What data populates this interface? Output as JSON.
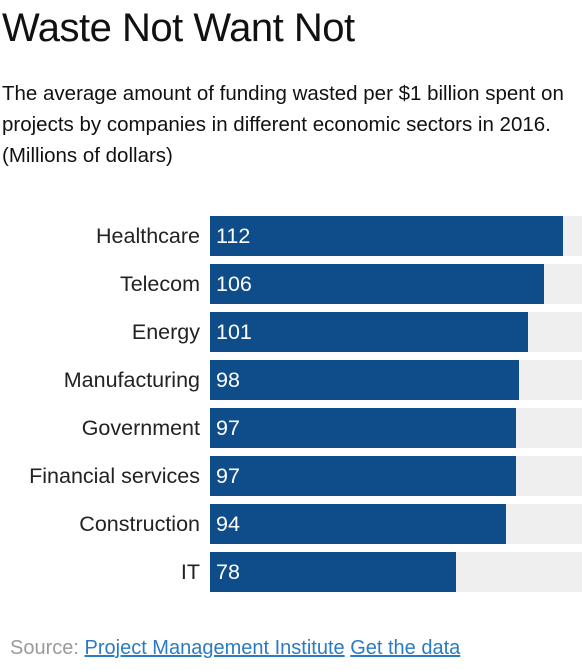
{
  "header": {
    "title": "Waste Not Want Not",
    "subtitle": "The average amount of funding wasted per $1 billion spent on projects by companies in different economic sectors in 2016. (Millions of dollars)"
  },
  "footer": {
    "source_label": "Source:",
    "source_link": "Project Management Institute",
    "data_link": "Get the data"
  },
  "colors": {
    "bar": "#0e4c8a",
    "track": "#efefef",
    "link": "#2a7bc4"
  },
  "chart_data": {
    "type": "bar",
    "orientation": "horizontal",
    "title": "Waste Not Want Not",
    "categories": [
      "Healthcare",
      "Telecom",
      "Energy",
      "Manufacturing",
      "Government",
      "Financial services",
      "Construction",
      "IT"
    ],
    "values": [
      112,
      106,
      101,
      98,
      97,
      97,
      94,
      78
    ],
    "xlim": [
      0,
      118
    ],
    "grid": false,
    "legend": "none"
  }
}
